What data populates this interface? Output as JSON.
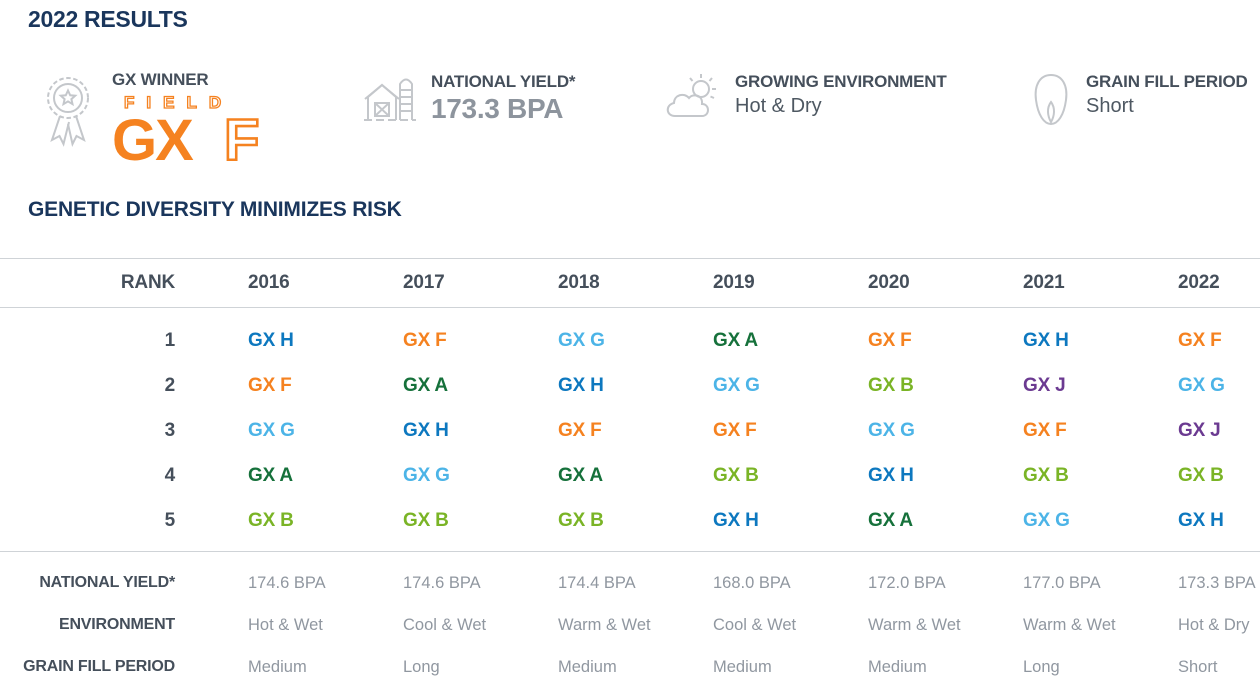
{
  "page": {
    "title": "2022 RESULTS"
  },
  "stats": {
    "winner": {
      "label": "GX WINNER",
      "logo_field": "FIELD",
      "logo_gx": "GX",
      "logo_f": "F"
    },
    "national_yield": {
      "label": "NATIONAL YIELD*",
      "value": "173.3 BPA"
    },
    "environment": {
      "label": "GROWING ENVIRONMENT",
      "value": "Hot & Dry"
    },
    "grain_fill": {
      "label": "GRAIN FILL PERIOD",
      "value": "Short"
    }
  },
  "section_title": "GENETIC DIVERSITY MINIMIZES RISK",
  "table": {
    "rank_header": "RANK",
    "years": [
      "2016",
      "2017",
      "2018",
      "2019",
      "2020",
      "2021",
      "2022"
    ],
    "ranks": [
      "1",
      "2",
      "3",
      "4",
      "5"
    ],
    "rows": [
      [
        "GX H",
        "GX F",
        "GX G",
        "GX A",
        "GX F",
        "GX H",
        "GX F"
      ],
      [
        "GX F",
        "GX A",
        "GX H",
        "GX G",
        "GX B",
        "GX J",
        "GX G"
      ],
      [
        "GX G",
        "GX H",
        "GX F",
        "GX F",
        "GX G",
        "GX F",
        "GX J"
      ],
      [
        "GX A",
        "GX G",
        "GX A",
        "GX B",
        "GX H",
        "GX B",
        "GX B"
      ],
      [
        "GX B",
        "GX B",
        "GX B",
        "GX H",
        "GX A",
        "GX G",
        "GX H"
      ]
    ],
    "footer_rows": [
      {
        "label": "NATIONAL YIELD*",
        "values": [
          "174.6 BPA",
          "174.6 BPA",
          "174.4 BPA",
          "168.0 BPA",
          "172.0 BPA",
          "177.0 BPA",
          "173.3 BPA"
        ]
      },
      {
        "label": "ENVIRONMENT",
        "values": [
          "Hot & Wet",
          "Cool & Wet",
          "Warm & Wet",
          "Cool & Wet",
          "Warm & Wet",
          "Warm & Wet",
          "Hot & Dry"
        ]
      },
      {
        "label": "GRAIN FILL PERIOD",
        "values": [
          "Medium",
          "Long",
          "Medium",
          "Medium",
          "Medium",
          "Long",
          "Short"
        ]
      }
    ]
  },
  "colors": {
    "heading": "#1a365c",
    "label": "#454f5b",
    "muted": "#9097a0",
    "icon_gray": "#c4c7cb",
    "line": "#cfd3d7",
    "accent_orange": "#f58220",
    "varieties": {
      "GX H": "#0d78bf",
      "GX F": "#f58220",
      "GX G": "#4cb4e7",
      "GX A": "#16713b",
      "GX B": "#7ab426",
      "GX J": "#6b3a91"
    }
  }
}
